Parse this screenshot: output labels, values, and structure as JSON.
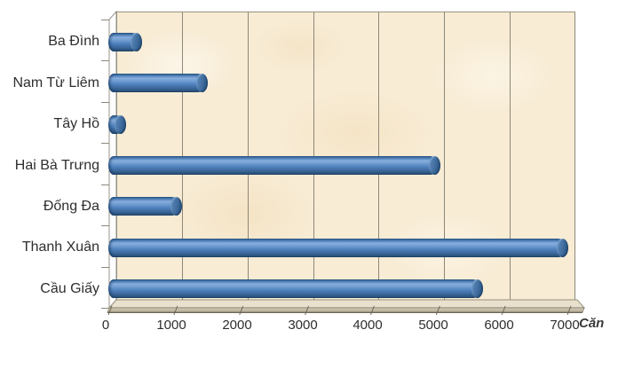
{
  "chart_data": {
    "type": "bar",
    "style": "3d-cylinder",
    "orientation": "horizontal",
    "title": "",
    "categories": [
      "Ba Đình",
      "Nam Từ Liêm",
      "Tây Hồ",
      "Hai Bà Trưng",
      "Đống Đa",
      "Thanh Xuân",
      "Cầu Giấy"
    ],
    "values": [
      450,
      1450,
      200,
      5000,
      1050,
      6950,
      5650
    ],
    "value_axis": {
      "min": 0,
      "max": 7000,
      "step": 1000,
      "ticks": [
        0,
        1000,
        2000,
        3000,
        4000,
        5000,
        6000,
        7000
      ],
      "unit_label": "Căn"
    },
    "grid": "vertical",
    "legend": "none",
    "colors": {
      "bar": "#4F81BD",
      "bar_highlight": "#88AEDD",
      "bar_shadow": "#1F3F63",
      "wall": "#F8ECD5",
      "floor_top": "#E9E1CD",
      "floor_front": "#C9BFA9",
      "gridline": "#8D8878",
      "text": "#2E2E2E"
    }
  }
}
